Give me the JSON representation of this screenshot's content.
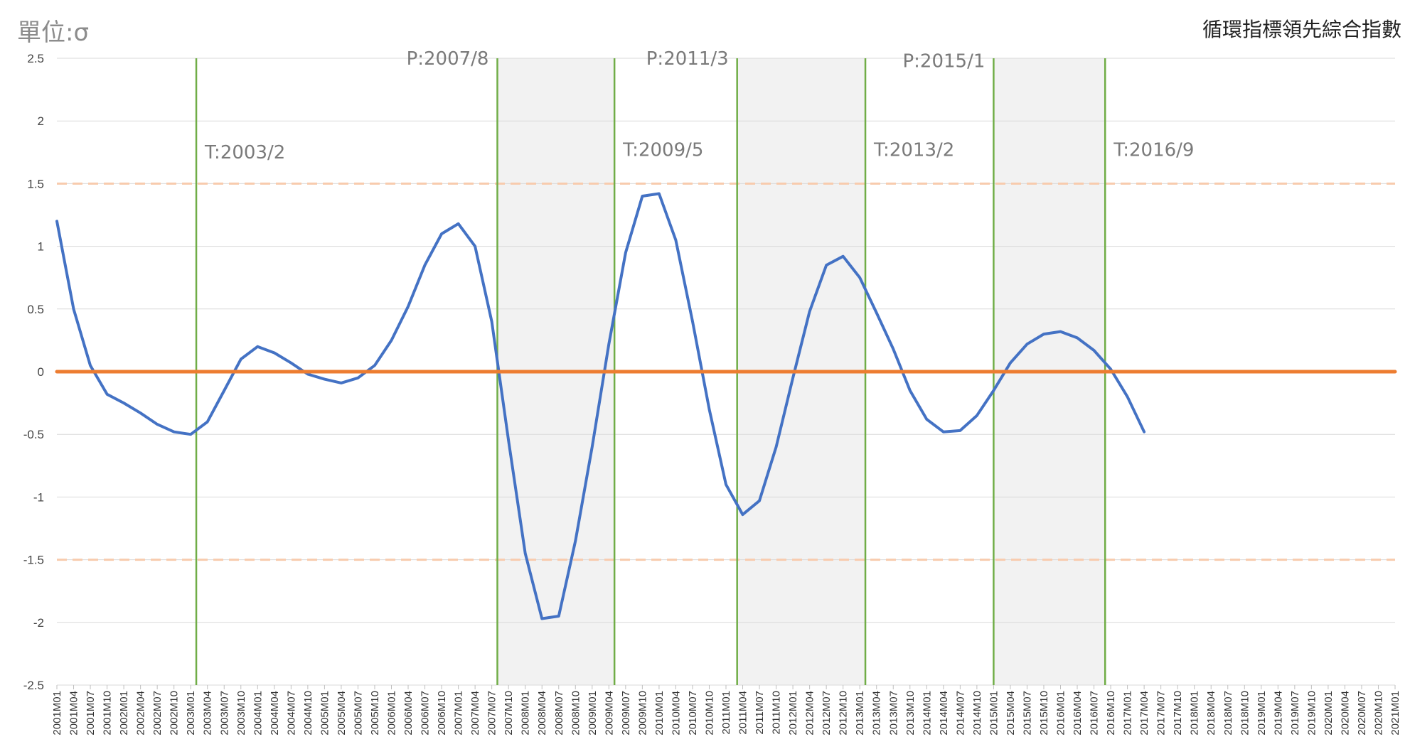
{
  "unit_label": "單位:σ",
  "title": "循環指標領先綜合指數",
  "chart_data": {
    "type": "line",
    "title": "循環指標領先綜合指數",
    "ylabel": "單位:σ",
    "ylim": [
      -2.5,
      2.5
    ],
    "yticks": [
      "2.5",
      "2",
      "1.5",
      "1",
      "0.5",
      "0",
      "-0.5",
      "-1",
      "-1.5",
      "-2",
      "-2.5"
    ],
    "xrange": [
      "2001M01",
      "2021M01"
    ],
    "xtick_step_months": 3,
    "grid": true,
    "zero_line": 0,
    "reference_lines": [
      1.5,
      -1.5
    ],
    "series": [
      {
        "color": "#4472c4",
        "points": [
          [
            "2001M01",
            1.2
          ],
          [
            "2001M04",
            0.5
          ],
          [
            "2001M07",
            0.05
          ],
          [
            "2001M10",
            -0.18
          ],
          [
            "2002M01",
            -0.25
          ],
          [
            "2002M04",
            -0.33
          ],
          [
            "2002M07",
            -0.42
          ],
          [
            "2002M10",
            -0.48
          ],
          [
            "2003M01",
            -0.5
          ],
          [
            "2003M04",
            -0.4
          ],
          [
            "2003M07",
            -0.15
          ],
          [
            "2003M10",
            0.1
          ],
          [
            "2004M01",
            0.2
          ],
          [
            "2004M04",
            0.15
          ],
          [
            "2004M07",
            0.07
          ],
          [
            "2004M10",
            -0.02
          ],
          [
            "2005M01",
            -0.06
          ],
          [
            "2005M04",
            -0.09
          ],
          [
            "2005M07",
            -0.05
          ],
          [
            "2005M10",
            0.05
          ],
          [
            "2006M01",
            0.25
          ],
          [
            "2006M04",
            0.52
          ],
          [
            "2006M07",
            0.85
          ],
          [
            "2006M10",
            1.1
          ],
          [
            "2007M01",
            1.18
          ],
          [
            "2007M04",
            1.0
          ],
          [
            "2007M07",
            0.4
          ],
          [
            "2007M10",
            -0.55
          ],
          [
            "2008M01",
            -1.45
          ],
          [
            "2008M04",
            -1.97
          ],
          [
            "2008M07",
            -1.95
          ],
          [
            "2008M10",
            -1.35
          ],
          [
            "2009M01",
            -0.6
          ],
          [
            "2009M04",
            0.22
          ],
          [
            "2009M07",
            0.95
          ],
          [
            "2009M10",
            1.4
          ],
          [
            "2010M01",
            1.42
          ],
          [
            "2010M04",
            1.05
          ],
          [
            "2010M07",
            0.4
          ],
          [
            "2010M10",
            -0.3
          ],
          [
            "2011M01",
            -0.9
          ],
          [
            "2011M04",
            -1.14
          ],
          [
            "2011M07",
            -1.03
          ],
          [
            "2011M10",
            -0.6
          ],
          [
            "2012M01",
            -0.05
          ],
          [
            "2012M04",
            0.48
          ],
          [
            "2012M07",
            0.85
          ],
          [
            "2012M10",
            0.92
          ],
          [
            "2013M01",
            0.75
          ],
          [
            "2013M04",
            0.47
          ],
          [
            "2013M07",
            0.18
          ],
          [
            "2013M10",
            -0.15
          ],
          [
            "2014M01",
            -0.38
          ],
          [
            "2014M04",
            -0.48
          ],
          [
            "2014M07",
            -0.47
          ],
          [
            "2014M10",
            -0.35
          ],
          [
            "2015M01",
            -0.15
          ],
          [
            "2015M04",
            0.07
          ],
          [
            "2015M07",
            0.22
          ],
          [
            "2015M10",
            0.3
          ],
          [
            "2016M01",
            0.32
          ],
          [
            "2016M04",
            0.27
          ],
          [
            "2016M07",
            0.17
          ],
          [
            "2016M10",
            0.02
          ],
          [
            "2017M01",
            -0.2
          ],
          [
            "2017M04",
            -0.48
          ]
        ]
      },
      {
        "color": "#ed7d31",
        "points": [
          [
            "2001M01",
            0
          ],
          [
            "2021M01",
            0
          ]
        ]
      }
    ],
    "vertical_lines": [
      "2003M02",
      "2007M08",
      "2009M05",
      "2011M03",
      "2013M02",
      "2015M01",
      "2016M09"
    ],
    "shaded_ranges": [
      [
        "2007M08",
        "2009M05"
      ],
      [
        "2011M03",
        "2013M02"
      ],
      [
        "2015M01",
        "2016M09"
      ]
    ],
    "annotations": [
      {
        "text": "T:2003/2",
        "at": "2003M02",
        "y": 1.7
      },
      {
        "text": "P:2007/8",
        "at": "2007M08",
        "y": 2.45
      },
      {
        "text": "T:2009/5",
        "at": "2009M05",
        "y": 1.72
      },
      {
        "text": "P:2011/3",
        "at": "2011M03",
        "y": 2.45
      },
      {
        "text": "T:2013/2",
        "at": "2013M02",
        "y": 1.72
      },
      {
        "text": "P:2015/1",
        "at": "2015M01",
        "y": 2.43
      },
      {
        "text": "T:2016/9",
        "at": "2016M09",
        "y": 1.72
      }
    ],
    "colors": {
      "series": "#4472c4",
      "zero": "#ed7d31",
      "cycle_lines": "#70ad47",
      "shade": "#f2f2f2",
      "ref": "#f8cbad",
      "grid": "#d9d9d9"
    }
  }
}
